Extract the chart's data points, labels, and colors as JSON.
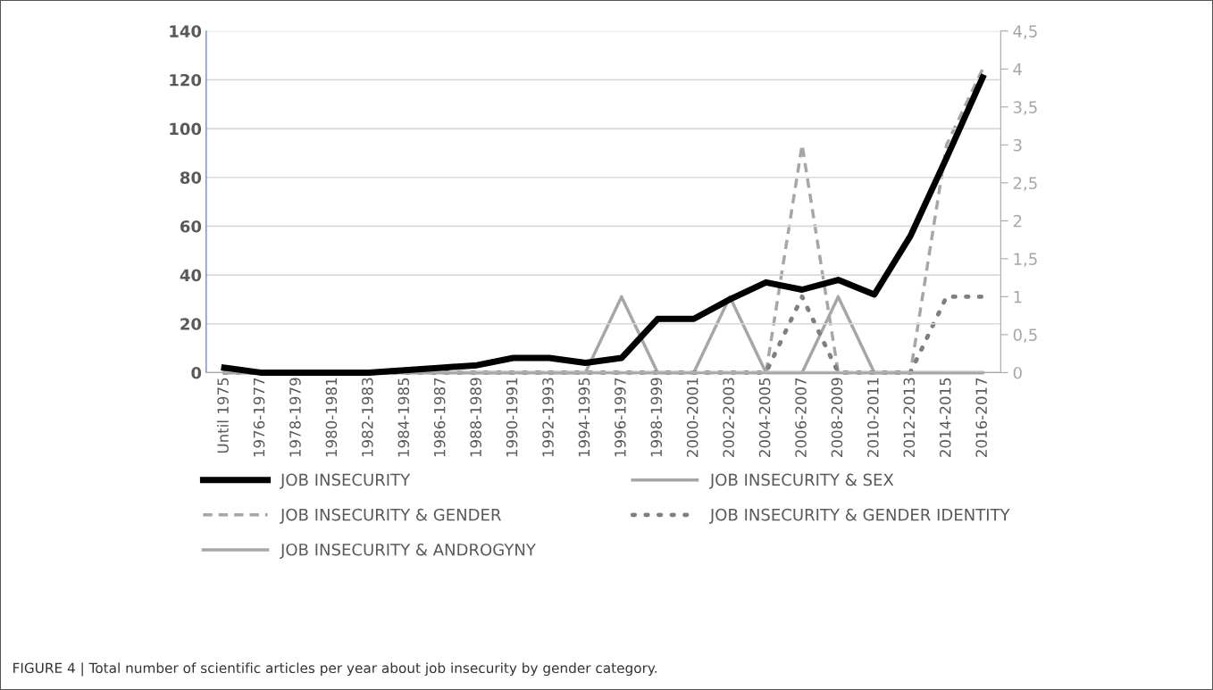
{
  "chart_data": {
    "type": "line",
    "categories": [
      "Until 1975",
      "1976-1977",
      "1978-1979",
      "1980-1981",
      "1982-1983",
      "1984-1985",
      "1986-1987",
      "1988-1989",
      "1990-1991",
      "1992-1993",
      "1994-1995",
      "1996-1997",
      "1998-1999",
      "2000-2001",
      "2002-2003",
      "2004-2005",
      "2006-2007",
      "2008-2009",
      "2010-2011",
      "2012-2013",
      "2014-2015",
      "2016-2017"
    ],
    "series": [
      {
        "name": "JOB INSECURITY",
        "color": "#000000",
        "line_style": "solid",
        "values": [
          2,
          0,
          0,
          0,
          0,
          1,
          2,
          3,
          6,
          6,
          4,
          6,
          22,
          22,
          30,
          37,
          34,
          38,
          32,
          56,
          88,
          121
        ]
      },
      {
        "name": "JOB INSECURITY & SEX",
        "color": "#a6a6a6",
        "line_style": "solid",
        "axis": "y2",
        "values": [
          0,
          0,
          0,
          0,
          0,
          0,
          0,
          0,
          0,
          0,
          0,
          1,
          0,
          0,
          1,
          0,
          0,
          1,
          0,
          0,
          0,
          0
        ]
      },
      {
        "name": "JOB INSECURITY & GENDER",
        "color": "#a6a6a6",
        "line_style": "dashed",
        "axis": "y2",
        "values": [
          0,
          0,
          0,
          0,
          0,
          0,
          0,
          0,
          0,
          0,
          0,
          0,
          0,
          0,
          0,
          0,
          3,
          0,
          0,
          0,
          3,
          4
        ]
      },
      {
        "name": "JOB INSECURITY & GENDER IDENTITY",
        "color": "#7f7f7f",
        "line_style": "dotted",
        "axis": "y2",
        "values": [
          0,
          0,
          0,
          0,
          0,
          0,
          0,
          0,
          0,
          0,
          0,
          0,
          0,
          0,
          0,
          0,
          1,
          0,
          0,
          0,
          1,
          1
        ]
      },
      {
        "name": "JOB INSECURITY & ANDROGYNY",
        "color": "#a6a6a6",
        "line_style": "solid",
        "axis": "y2",
        "values": [
          0,
          0,
          0,
          0,
          0,
          0,
          0,
          0,
          0,
          0,
          0,
          0,
          0,
          0,
          0,
          0,
          0,
          0,
          0,
          0,
          0,
          0
        ]
      }
    ],
    "ylim": [
      0,
      140
    ],
    "yticks": [
      0,
      20,
      40,
      60,
      80,
      100,
      120,
      140
    ],
    "y2lim": [
      0,
      4.5
    ],
    "y2ticks": [
      0,
      {
        "value": 0.5,
        "label": "0,5"
      },
      1,
      {
        "value": 1.5,
        "label": "1,5"
      },
      2,
      {
        "value": 2.5,
        "label": "2,5"
      },
      3,
      {
        "value": 3.5,
        "label": "3,5"
      },
      4,
      {
        "value": 4.5,
        "label": "4,5"
      }
    ],
    "grid": "y",
    "legend": "bottom",
    "annotations": [
      "FIGURE 4 | Total number of scientific articles per year about job insecurity by gender category."
    ]
  }
}
